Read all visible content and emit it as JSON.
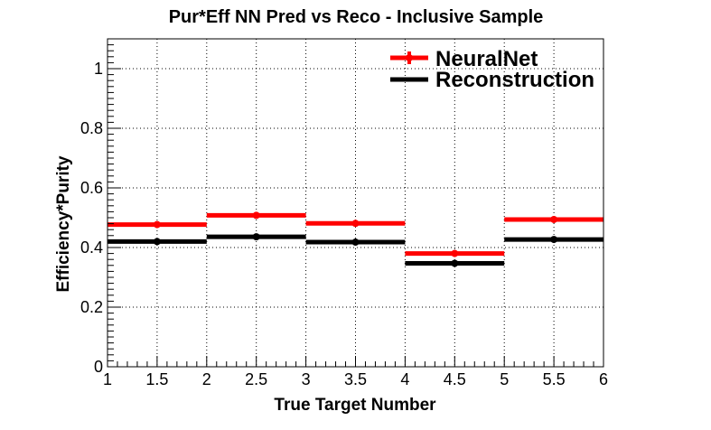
{
  "chart_data": {
    "type": "line",
    "title": "Pur*Eff NN Pred vs Reco - Inclusive Sample",
    "xlabel": "True Target Number",
    "ylabel": "Efficiency*Purity",
    "xlim": [
      1,
      6
    ],
    "ylim": [
      0,
      1.1
    ],
    "x_ticks": [
      "1",
      "1.5",
      "2",
      "2.5",
      "3",
      "3.5",
      "4",
      "4.5",
      "5",
      "5.5",
      "6"
    ],
    "y_ticks": [
      "0",
      "0.2",
      "0.4",
      "0.6",
      "0.8",
      "1"
    ],
    "grid": true,
    "legend_position": "top-right",
    "series": [
      {
        "name": "NeuralNet",
        "color": "#ff0000",
        "bins": [
          [
            1,
            2
          ],
          [
            2,
            3
          ],
          [
            3,
            4
          ],
          [
            4,
            5
          ],
          [
            5,
            6
          ]
        ],
        "x": [
          1.5,
          2.5,
          3.5,
          4.5,
          5.5
        ],
        "values": [
          0.477,
          0.508,
          0.481,
          0.38,
          0.494
        ]
      },
      {
        "name": "Reconstruction",
        "color": "#000000",
        "bins": [
          [
            1,
            2
          ],
          [
            2,
            3
          ],
          [
            3,
            4
          ],
          [
            4,
            5
          ],
          [
            5,
            6
          ]
        ],
        "x": [
          1.5,
          2.5,
          3.5,
          4.5,
          5.5
        ],
        "values": [
          0.42,
          0.436,
          0.418,
          0.347,
          0.427
        ]
      }
    ]
  }
}
